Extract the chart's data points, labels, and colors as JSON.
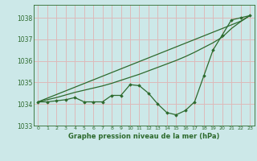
{
  "x": [
    0,
    1,
    2,
    3,
    4,
    5,
    6,
    7,
    8,
    9,
    10,
    11,
    12,
    13,
    14,
    15,
    16,
    17,
    18,
    19,
    20,
    21,
    22,
    23
  ],
  "y_main": [
    1034.1,
    1034.1,
    1034.15,
    1034.2,
    1034.3,
    1034.1,
    1034.1,
    1034.1,
    1034.4,
    1034.4,
    1034.9,
    1034.85,
    1034.5,
    1034.0,
    1033.6,
    1033.5,
    1033.7,
    1034.1,
    1035.3,
    1036.5,
    1037.2,
    1037.9,
    1038.0,
    1038.1
  ],
  "y_smooth1": [
    1034.1,
    1034.27,
    1034.44,
    1034.61,
    1034.78,
    1034.95,
    1035.12,
    1035.29,
    1035.46,
    1035.63,
    1035.8,
    1035.97,
    1036.14,
    1036.31,
    1036.48,
    1036.65,
    1036.82,
    1036.99,
    1037.16,
    1037.33,
    1037.5,
    1037.67,
    1037.84,
    1038.1
  ],
  "y_smooth2": [
    1034.1,
    1034.2,
    1034.3,
    1034.42,
    1034.54,
    1034.64,
    1034.74,
    1034.84,
    1034.96,
    1035.1,
    1035.24,
    1035.38,
    1035.54,
    1035.7,
    1035.86,
    1036.02,
    1036.2,
    1036.4,
    1036.62,
    1036.84,
    1037.1,
    1037.5,
    1037.82,
    1038.1
  ],
  "line_color": "#2d6a2d",
  "bg_color": "#cce8e8",
  "grid_color": "#ddbaba",
  "title": "Graphe pression niveau de la mer (hPa)",
  "xlim": [
    -0.5,
    23.5
  ],
  "ylim": [
    1033.0,
    1038.6
  ],
  "yticks": [
    1033,
    1034,
    1035,
    1036,
    1037,
    1038
  ],
  "xticks": [
    0,
    1,
    2,
    3,
    4,
    5,
    6,
    7,
    8,
    9,
    10,
    11,
    12,
    13,
    14,
    15,
    16,
    17,
    18,
    19,
    20,
    21,
    22,
    23
  ]
}
